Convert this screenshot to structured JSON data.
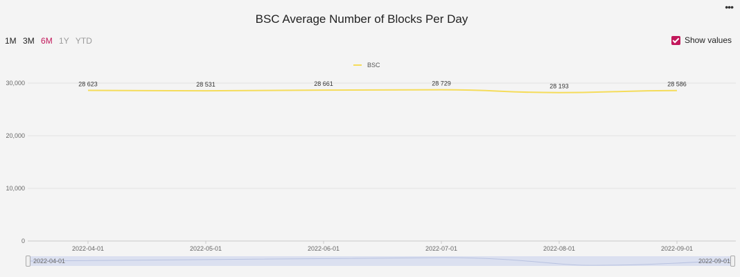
{
  "more_icon": "more-dots-icon",
  "ranges": [
    "1M",
    "3M",
    "6M",
    "1Y",
    "YTD"
  ],
  "show_values_label": "Show values",
  "navigator": {
    "start": "2022-04-01",
    "end": "2022-09-01"
  },
  "colors": {
    "series": "#f5dc5a",
    "accent": "#c2185b"
  },
  "chart_data": {
    "type": "line",
    "title": "BSC Average Number of Blocks Per Day",
    "x": [
      "2022-04-01",
      "2022-05-01",
      "2022-06-01",
      "2022-07-01",
      "2022-08-01",
      "2022-09-01"
    ],
    "series": [
      {
        "name": "BSC",
        "values": [
          28623,
          28531,
          28661,
          28729,
          28193,
          28586
        ],
        "labels": [
          "28 623",
          "28 531",
          "28 661",
          "28 729",
          "28 193",
          "28 586"
        ]
      }
    ],
    "yticks": [
      0,
      10000,
      20000,
      30000
    ],
    "ytick_labels": [
      "0",
      "10,000",
      "20,000",
      "30,000"
    ],
    "ylim": [
      0,
      30000
    ],
    "grid": true,
    "legend": "top-center",
    "xlabel": "",
    "ylabel": ""
  }
}
